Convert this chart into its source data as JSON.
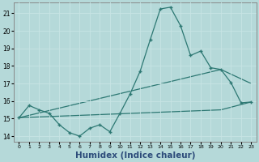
{
  "xlabel": "Humidex (Indice chaleur)",
  "background_color": "#b5d9d9",
  "grid_color": "#d4ecec",
  "line_color": "#2d7873",
  "xlim": [
    -0.5,
    23.5
  ],
  "ylim": [
    13.7,
    21.6
  ],
  "yticks": [
    14,
    15,
    16,
    17,
    18,
    19,
    20,
    21
  ],
  "xticks": [
    0,
    1,
    2,
    3,
    4,
    5,
    6,
    7,
    8,
    9,
    10,
    11,
    12,
    13,
    14,
    15,
    16,
    17,
    18,
    19,
    20,
    21,
    22,
    23
  ],
  "series1_x": [
    0,
    1,
    2,
    3,
    4,
    5,
    6,
    7,
    8,
    9,
    10,
    11,
    12,
    13,
    14,
    15,
    16,
    17,
    18,
    19,
    20,
    21,
    22,
    23
  ],
  "series1_y": [
    15.05,
    15.75,
    15.5,
    15.3,
    14.65,
    14.2,
    14.0,
    14.45,
    14.65,
    14.25,
    15.3,
    16.4,
    17.7,
    19.5,
    21.25,
    21.35,
    20.3,
    18.6,
    18.85,
    17.9,
    17.8,
    17.05,
    15.9,
    15.95
  ],
  "line1_x": [
    0,
    20,
    23
  ],
  "line1_y": [
    15.05,
    17.8,
    17.0
  ],
  "line2_x": [
    0,
    20,
    23
  ],
  "line2_y": [
    15.05,
    15.5,
    15.95
  ],
  "xlabel_color": "#2d4c7a",
  "xlabel_fontsize": 7.5
}
